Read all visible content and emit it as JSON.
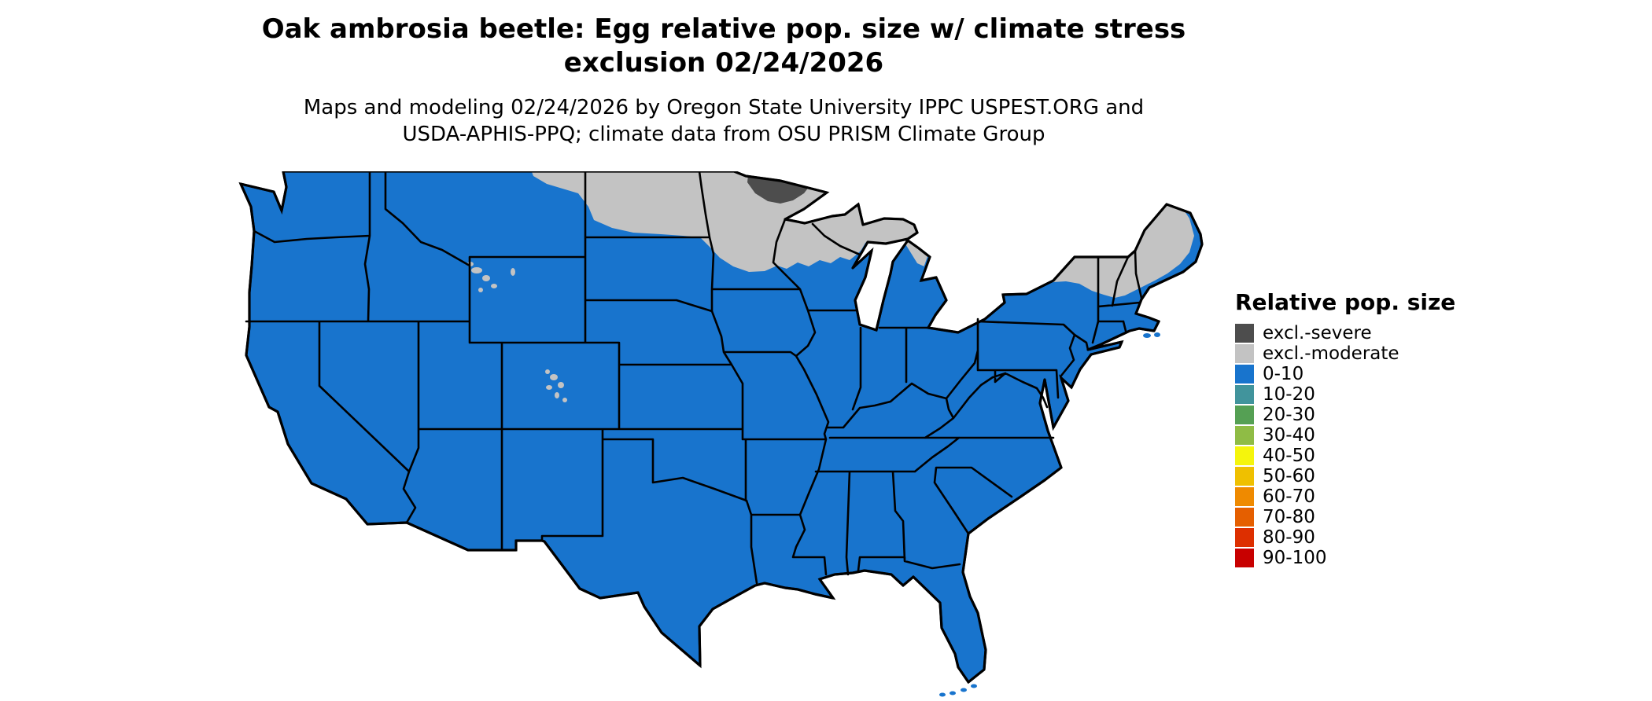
{
  "title": {
    "line1": "Oak ambrosia beetle: Egg relative pop. size w/ climate stress",
    "line2": "exclusion 02/24/2026"
  },
  "subtitle": {
    "line1": "Maps and modeling 02/24/2026 by Oregon State University IPPC USPEST.ORG and",
    "line2": "USDA-APHIS-PPQ; climate data from OSU PRISM Climate Group"
  },
  "legend": {
    "title": "Relative pop. size",
    "entries": [
      {
        "label": "excl.-severe",
        "color": "#4d4d4d"
      },
      {
        "label": "excl.-moderate",
        "color": "#c3c3c3"
      },
      {
        "label": "0-10",
        "color": "#1874cd"
      },
      {
        "label": "10-20",
        "color": "#41949c"
      },
      {
        "label": "20-30",
        "color": "#55a054"
      },
      {
        "label": "30-40",
        "color": "#8fbc45"
      },
      {
        "label": "40-50",
        "color": "#f5f50c"
      },
      {
        "label": "50-60",
        "color": "#efc000"
      },
      {
        "label": "60-70",
        "color": "#ef8a00"
      },
      {
        "label": "70-80",
        "color": "#e55f00"
      },
      {
        "label": "80-90",
        "color": "#dd2f00"
      },
      {
        "label": "90-100",
        "color": "#c80000"
      }
    ]
  },
  "map": {
    "border_color": "#000000"
  }
}
